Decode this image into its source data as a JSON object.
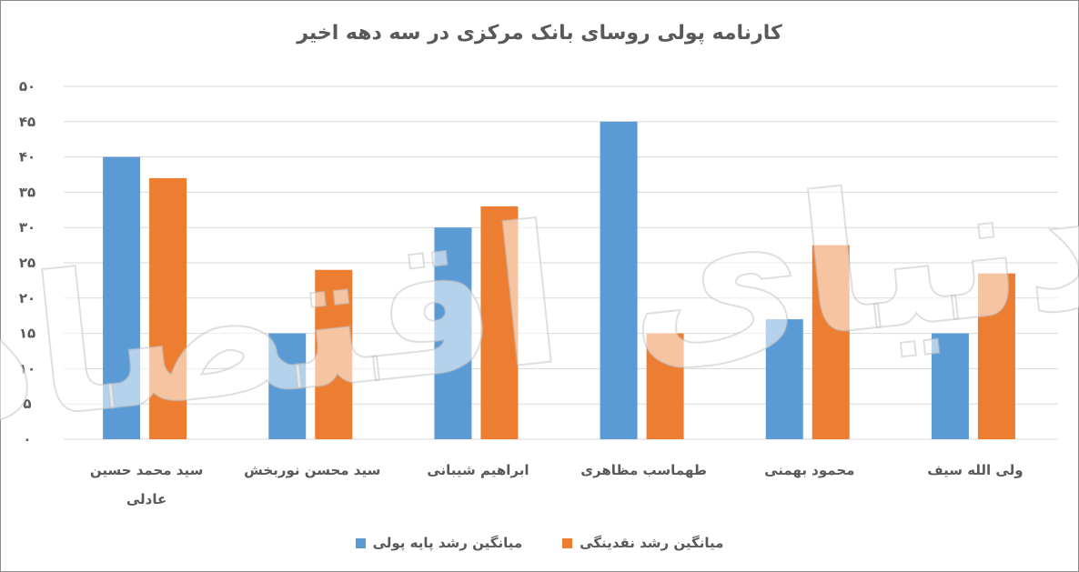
{
  "chart_data": {
    "type": "bar",
    "title": "کارنامه پولی روسای بانک مرکزی در سه دهه اخیر",
    "categories": [
      "سید محمد حسین عادلی",
      "سید محسن نوربخش",
      "ابراهیم شیبانی",
      "طهماسب مظاهری",
      "محمود بهمنی",
      "ولی الله سیف"
    ],
    "series": [
      {
        "name": "میانگین رشد پایه پولی",
        "color": "#5b9bd5",
        "values": [
          40,
          15,
          30,
          45,
          17,
          15
        ]
      },
      {
        "name": "میانگین رشد نقدینگی",
        "color": "#ed7d31",
        "values": [
          37,
          24,
          33,
          15,
          27.5,
          23.5
        ]
      }
    ],
    "ylim": [
      0,
      50
    ],
    "ytick_step": 5,
    "ytick_labels": [
      "۰",
      "۵",
      "۱۰",
      "۱۵",
      "۲۰",
      "۲۵",
      "۳۰",
      "۳۵",
      "۴۰",
      "۴۵",
      "۵۰"
    ],
    "grid": true,
    "legend": "bottom",
    "watermark": "دنیای اقتصاد"
  }
}
